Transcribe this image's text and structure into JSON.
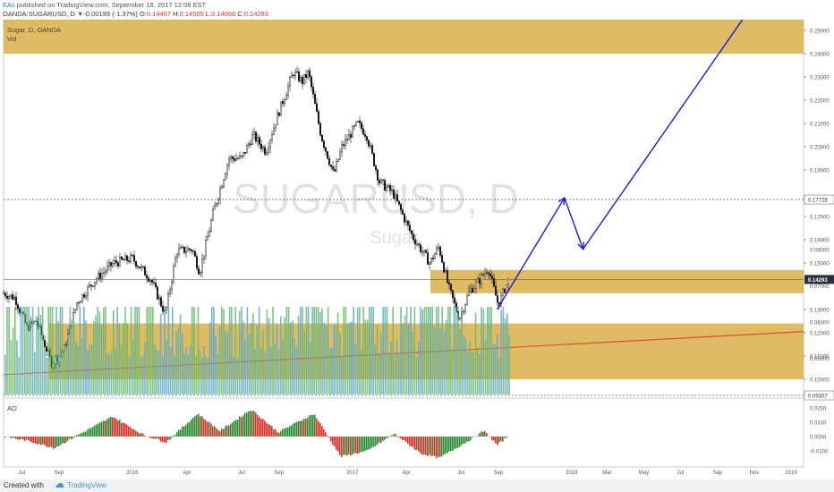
{
  "header": {
    "author": "EAs",
    "published": " published on TradingView.com, September 18, 2017 12:08 EST",
    "symbol": "OANDA:SUGARUSD, D",
    "change_arrow": "▼",
    "change": "-0.00199 (-1.37%)",
    "ohlc": [
      {
        "label": "O:",
        "value": "0.14497"
      },
      {
        "label": "H:",
        "value": "0.14505"
      },
      {
        "label": "L:",
        "value": "0.14068"
      },
      {
        "label": "C:",
        "value": "0.14293"
      }
    ]
  },
  "chart": {
    "series_title": "Sugar, D, OANDA",
    "volume_title": "Vol",
    "watermark_symbol": "SUGARUSD, D",
    "watermark_name": "Sugar",
    "ao_title": "AO",
    "last_price_label": "0.14293",
    "level_labels": [
      "0.26057",
      "0.17728",
      "0.09307"
    ],
    "colors": {
      "zone": "#d4a52f",
      "trendline": "#e04a3a",
      "arrow": "#1a1adb",
      "up": "#2e8b3a",
      "down": "#e0302a",
      "vol_up": "#6cb86a",
      "vol_down": "#5fa8c8"
    }
  },
  "chart_data": {
    "type": "line",
    "price_axis": {
      "ticks": [
        "0.30000",
        "0.29000",
        "0.28000",
        "0.27000",
        "0.25000",
        "0.24000",
        "0.23000",
        "0.22000",
        "0.21000",
        "0.20000",
        "0.19000",
        "0.17000",
        "0.16000",
        "0.15000",
        "0.13000",
        "0.12000",
        "0.11000",
        "0.10000"
      ]
    },
    "volume_axis": {
      "ticks": [
        "0.08000",
        "0.07000",
        "0.06000",
        "0.05000",
        "0.04000"
      ]
    },
    "ao_axis": {
      "ticks": [
        "0.0200",
        "0.0100",
        "0.0000",
        "-0.0100"
      ]
    },
    "time_axis": {
      "ticks": [
        "Jul",
        "Sep",
        "2016",
        "Apr",
        "Jul",
        "Sep",
        "2017",
        "Apr",
        "Jul",
        "Sep",
        "2018",
        "Mar",
        "May",
        "Jul",
        "Sep",
        "Nov",
        "2019"
      ]
    },
    "price_path": [
      [
        "2015-06-01",
        0.137
      ],
      [
        "2015-06-20",
        0.135
      ],
      [
        "2015-07-10",
        0.122
      ],
      [
        "2015-07-25",
        0.125
      ],
      [
        "2015-08-20",
        0.107
      ],
      [
        "2015-09-10",
        0.113
      ],
      [
        "2015-10-01",
        0.133
      ],
      [
        "2015-11-01",
        0.143
      ],
      [
        "2015-12-01",
        0.15
      ],
      [
        "2016-01-01",
        0.152
      ],
      [
        "2016-02-01",
        0.143
      ],
      [
        "2016-02-25",
        0.128
      ],
      [
        "2016-03-15",
        0.155
      ],
      [
        "2016-04-10",
        0.156
      ],
      [
        "2016-04-22",
        0.146
      ],
      [
        "2016-05-15",
        0.172
      ],
      [
        "2016-06-10",
        0.195
      ],
      [
        "2016-07-01",
        0.195
      ],
      [
        "2016-07-20",
        0.205
      ],
      [
        "2016-08-10",
        0.198
      ],
      [
        "2016-09-01",
        0.215
      ],
      [
        "2016-09-25",
        0.232
      ],
      [
        "2016-10-10",
        0.228
      ],
      [
        "2016-10-20",
        0.232
      ],
      [
        "2016-11-10",
        0.205
      ],
      [
        "2016-12-01",
        0.188
      ],
      [
        "2016-12-15",
        0.2
      ],
      [
        "2017-01-10",
        0.21
      ],
      [
        "2017-01-25",
        0.205
      ],
      [
        "2017-02-15",
        0.185
      ],
      [
        "2017-03-10",
        0.18
      ],
      [
        "2017-04-10",
        0.162
      ],
      [
        "2017-05-10",
        0.15
      ],
      [
        "2017-05-25",
        0.157
      ],
      [
        "2017-06-10",
        0.14
      ],
      [
        "2017-06-28",
        0.126
      ],
      [
        "2017-07-15",
        0.138
      ],
      [
        "2017-07-30",
        0.142
      ],
      [
        "2017-08-15",
        0.148
      ],
      [
        "2017-09-01",
        0.132
      ],
      [
        "2017-09-18",
        0.14293
      ]
    ],
    "zones": [
      {
        "from": 0.24,
        "to": 0.26
      },
      {
        "from": 0.137,
        "to": 0.147
      },
      {
        "from": 0.1,
        "to": 0.124
      }
    ],
    "projection_path": [
      [
        "2017-08-30",
        0.13
      ],
      [
        "2017-12-20",
        0.178
      ],
      [
        "2018-01-20",
        0.156
      ],
      [
        "2018-11-01",
        0.262
      ]
    ]
  }
}
